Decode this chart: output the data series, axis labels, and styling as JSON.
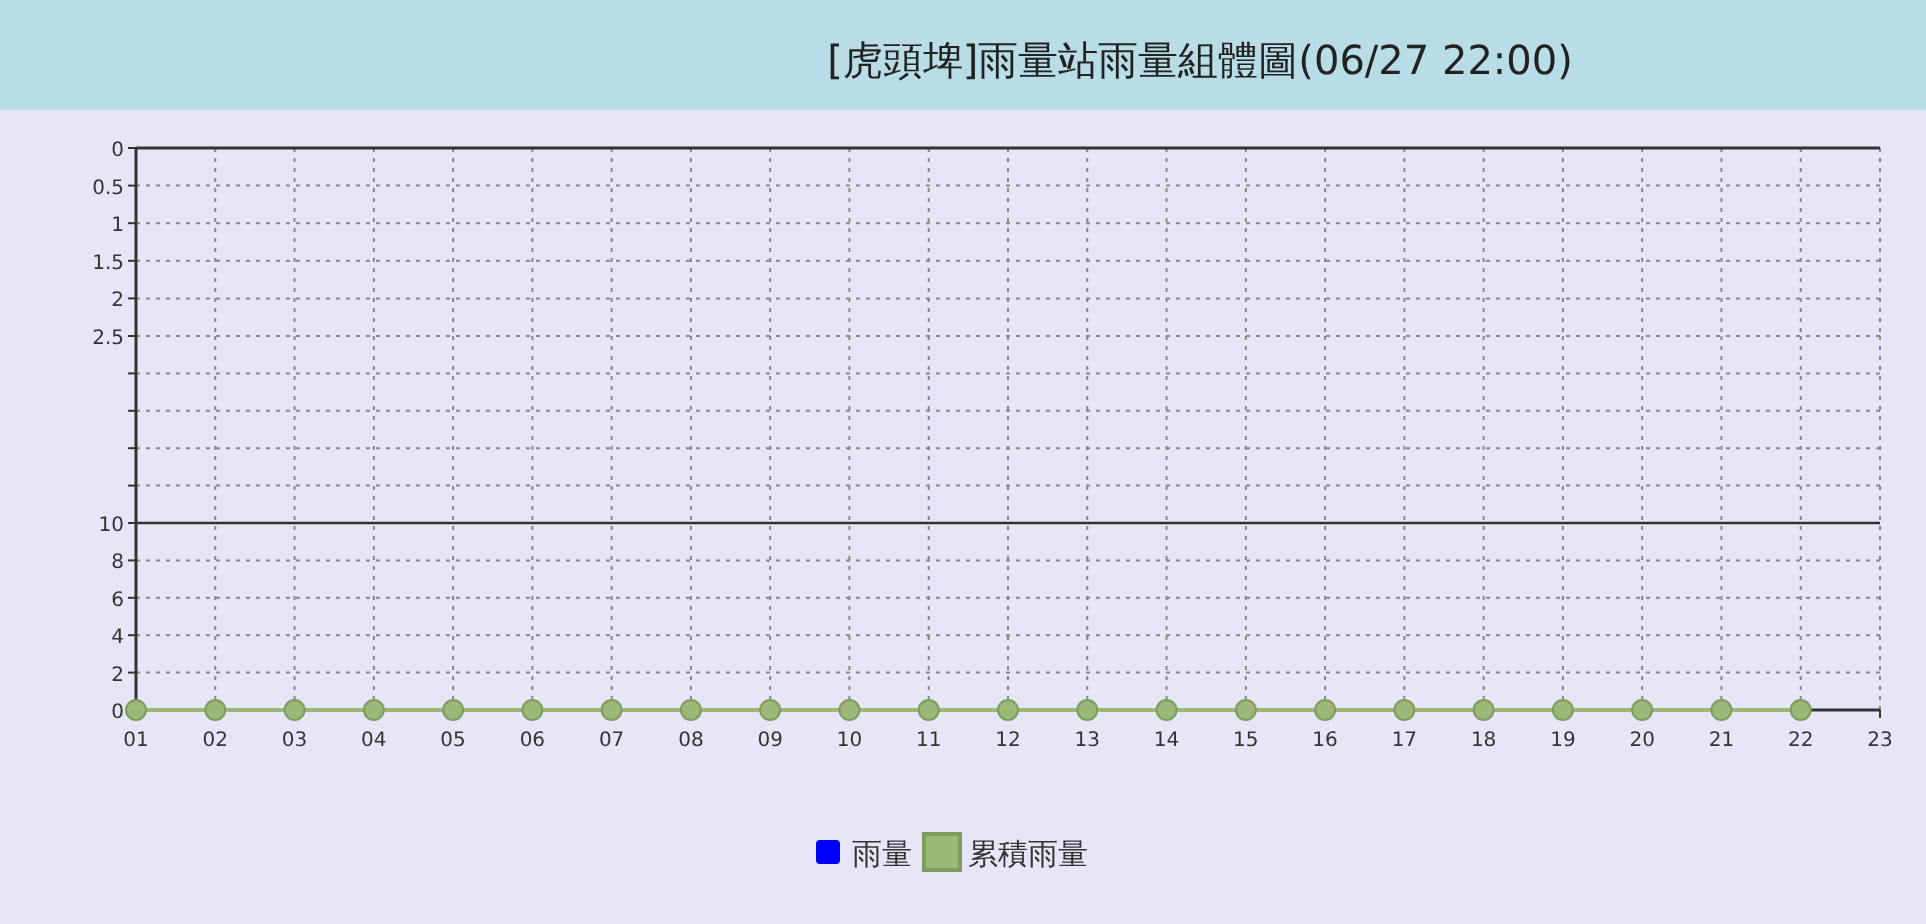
{
  "chart_data": [
    {
      "type": "bar",
      "title": "[虎頭埤]雨量站雨量組體圖(06/27 22:00)",
      "categories": [
        "01",
        "02",
        "03",
        "04",
        "05",
        "06",
        "07",
        "08",
        "09",
        "10",
        "11",
        "12",
        "13",
        "14",
        "15",
        "16",
        "17",
        "18",
        "19",
        "20",
        "21",
        "22",
        "23"
      ],
      "series": [
        {
          "name": "雨量",
          "color": "#0000ff",
          "values": [
            0,
            0,
            0,
            0,
            0,
            0,
            0,
            0,
            0,
            0,
            0,
            0,
            0,
            0,
            0,
            0,
            0,
            0,
            0,
            0,
            0,
            0,
            null
          ]
        }
      ],
      "ylim": [
        2.5,
        0
      ],
      "yticks": [
        0,
        0.5,
        1,
        1.5,
        2,
        2.5
      ],
      "grid": true,
      "legend": "bottom",
      "tick_labels": "y"
    },
    {
      "type": "line",
      "categories": [
        "01",
        "02",
        "03",
        "04",
        "05",
        "06",
        "07",
        "08",
        "09",
        "10",
        "11",
        "12",
        "13",
        "14",
        "15",
        "16",
        "17",
        "18",
        "19",
        "20",
        "21",
        "22",
        "23"
      ],
      "series": [
        {
          "name": "累積雨量",
          "color": "#9cb878",
          "values": [
            0,
            0,
            0,
            0,
            0,
            0,
            0,
            0,
            0,
            0,
            0,
            0,
            0,
            0,
            0,
            0,
            0,
            0,
            0,
            0,
            0,
            0,
            null
          ]
        }
      ],
      "ylim": [
        0,
        20
      ],
      "yticks": [
        0,
        2,
        4,
        6,
        8,
        10,
        {
          "value": 12,
          "label": null
        },
        {
          "value": 14,
          "label": null
        },
        {
          "value": 16,
          "label": null
        },
        {
          "value": 18,
          "label": null
        }
      ],
      "ref_lines": [
        {
          "axis": "y",
          "value": 10,
          "color": "#333333",
          "line_style": "solid"
        }
      ],
      "grid": true,
      "legend": "bottom",
      "marker": "circle"
    }
  ]
}
